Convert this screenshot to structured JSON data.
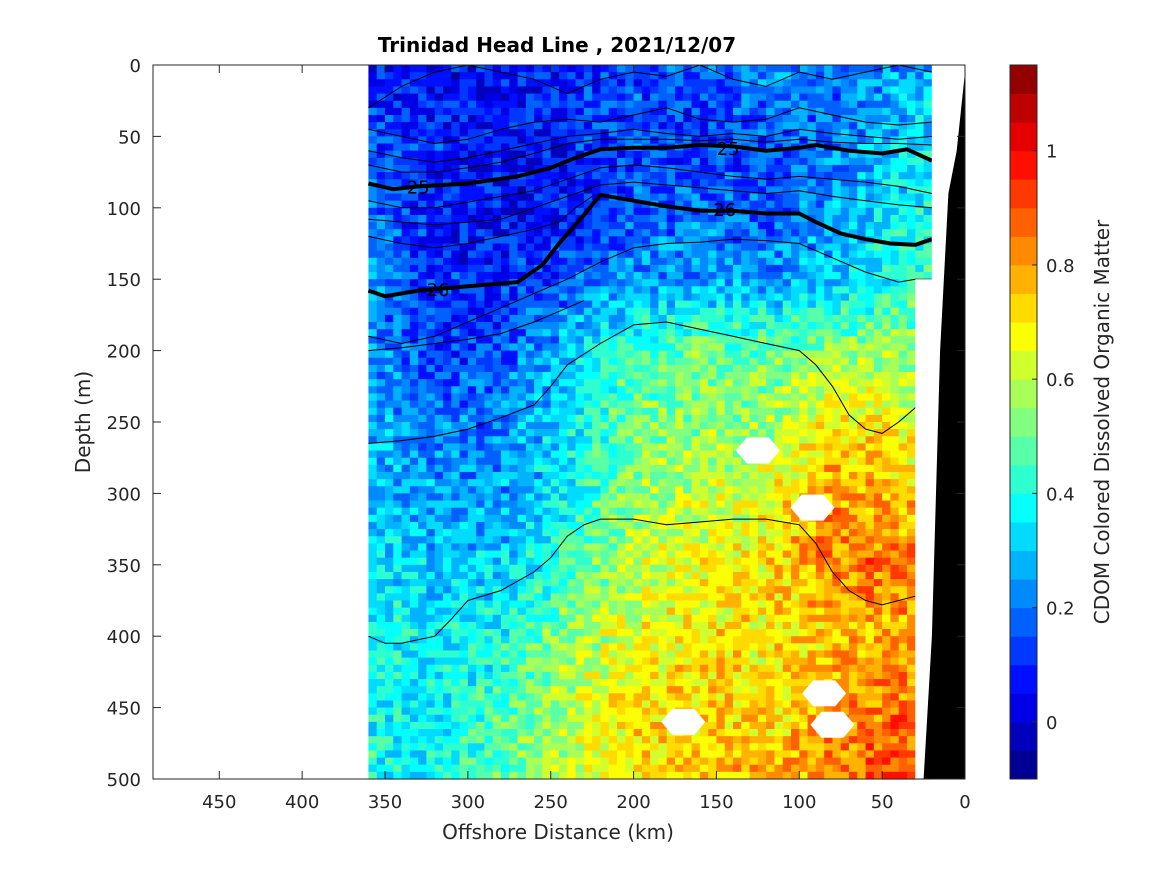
{
  "chart_data": {
    "type": "heatmap",
    "title": "Trinidad Head Line , 2021/12/07",
    "xlabel": "Offshore Distance (km)",
    "ylabel": "Depth (m)",
    "colorbar_label": "CDOM Colored Dissolved Organic Matter",
    "xlim": [
      490,
      0
    ],
    "ylim": [
      0,
      500
    ],
    "y_reversed": true,
    "x_reversed": true,
    "x_ticks": [
      450,
      400,
      350,
      300,
      250,
      200,
      150,
      100,
      50,
      0
    ],
    "y_ticks": [
      0,
      50,
      100,
      150,
      200,
      250,
      300,
      350,
      400,
      450,
      500
    ],
    "clim": [
      -0.1,
      1.15
    ],
    "colorbar_ticks": [
      0,
      0.2,
      0.4,
      0.6,
      0.8,
      1
    ],
    "colormap": "jet",
    "data_extent_x": [
      360,
      20
    ],
    "field": {
      "x_km": [
        360,
        320,
        280,
        240,
        200,
        160,
        120,
        80,
        40,
        20
      ],
      "depth_m": [
        0,
        50,
        100,
        150,
        200,
        250,
        300,
        350,
        400,
        450,
        500
      ],
      "cdom": [
        [
          0.1,
          0.05,
          0.05,
          0.1,
          0.15,
          0.15,
          0.25,
          0.2,
          0.25,
          0.25
        ],
        [
          0.15,
          0.1,
          0.05,
          0.1,
          0.15,
          0.1,
          0.15,
          0.2,
          0.3,
          0.35
        ],
        [
          0.2,
          0.1,
          0.05,
          0.05,
          0.15,
          0.2,
          0.15,
          0.25,
          0.35,
          0.4
        ],
        [
          0.25,
          0.1,
          0.1,
          0.15,
          0.25,
          0.25,
          0.25,
          0.3,
          0.4,
          0.45
        ],
        [
          0.25,
          0.1,
          0.15,
          0.3,
          0.45,
          0.5,
          0.5,
          0.55,
          0.55,
          0.55
        ],
        [
          0.3,
          0.2,
          0.2,
          0.35,
          0.5,
          0.55,
          0.55,
          0.7,
          0.65,
          0.6
        ],
        [
          0.3,
          0.25,
          0.25,
          0.35,
          0.55,
          0.6,
          0.65,
          0.8,
          0.75,
          0.75
        ],
        [
          0.35,
          0.3,
          0.3,
          0.45,
          0.6,
          0.65,
          0.7,
          0.85,
          0.85,
          0.8
        ],
        [
          0.4,
          0.35,
          0.4,
          0.55,
          0.65,
          0.7,
          0.7,
          0.75,
          0.8,
          0.75
        ],
        [
          0.4,
          0.35,
          0.45,
          0.6,
          0.7,
          0.75,
          0.7,
          0.8,
          0.85,
          0.85
        ],
        [
          0.4,
          0.35,
          0.5,
          0.6,
          0.7,
          0.75,
          0.75,
          0.85,
          0.9,
          0.85
        ]
      ]
    },
    "isopycnal_labels": [
      {
        "value": "25",
        "x_km": 330,
        "depth_m": 85
      },
      {
        "value": "25",
        "x_km": 143,
        "depth_m": 58
      },
      {
        "value": "26",
        "x_km": 145,
        "depth_m": 101
      },
      {
        "value": "26",
        "x_km": 318,
        "depth_m": 157
      }
    ],
    "isopycnals_bold": [
      {
        "value": 25,
        "points": [
          [
            360,
            83
          ],
          [
            345,
            87
          ],
          [
            330,
            85
          ],
          [
            300,
            83
          ],
          [
            270,
            78
          ],
          [
            250,
            72
          ],
          [
            235,
            65
          ],
          [
            220,
            59
          ],
          [
            200,
            58
          ],
          [
            180,
            58
          ],
          [
            160,
            56
          ],
          [
            140,
            57
          ],
          [
            120,
            60
          ],
          [
            100,
            58
          ],
          [
            90,
            56
          ],
          [
            70,
            60
          ],
          [
            50,
            62
          ],
          [
            35,
            59
          ],
          [
            20,
            67
          ]
        ]
      },
      {
        "value": 26,
        "points": [
          [
            360,
            158
          ],
          [
            350,
            162
          ],
          [
            330,
            158
          ],
          [
            300,
            155
          ],
          [
            270,
            152
          ],
          [
            255,
            140
          ],
          [
            245,
            125
          ],
          [
            230,
            105
          ],
          [
            220,
            91
          ],
          [
            200,
            95
          ],
          [
            180,
            99
          ],
          [
            160,
            102
          ],
          [
            140,
            102
          ],
          [
            120,
            104
          ],
          [
            100,
            104
          ],
          [
            90,
            110
          ],
          [
            75,
            118
          ],
          [
            60,
            122
          ],
          [
            45,
            125
          ],
          [
            30,
            126
          ],
          [
            20,
            122
          ]
        ]
      }
    ],
    "isopycnals_thin": [
      {
        "points": [
          [
            360,
            30
          ],
          [
            340,
            15
          ],
          [
            320,
            5
          ],
          [
            300,
            0
          ],
          [
            260,
            10
          ],
          [
            240,
            20
          ],
          [
            220,
            10
          ],
          [
            200,
            5
          ],
          [
            180,
            8
          ],
          [
            160,
            0
          ],
          [
            140,
            10
          ],
          [
            120,
            15
          ],
          [
            100,
            5
          ],
          [
            80,
            10
          ],
          [
            60,
            5
          ],
          [
            40,
            0
          ],
          [
            20,
            5
          ]
        ]
      },
      {
        "points": [
          [
            360,
            45
          ],
          [
            340,
            50
          ],
          [
            320,
            55
          ],
          [
            300,
            52
          ],
          [
            280,
            45
          ],
          [
            260,
            40
          ],
          [
            240,
            38
          ],
          [
            220,
            40
          ],
          [
            200,
            35
          ],
          [
            180,
            30
          ],
          [
            160,
            38
          ],
          [
            140,
            40
          ],
          [
            120,
            38
          ],
          [
            100,
            30
          ],
          [
            80,
            35
          ],
          [
            60,
            40
          ],
          [
            40,
            42
          ],
          [
            20,
            40
          ]
        ]
      },
      {
        "points": [
          [
            360,
            60
          ],
          [
            340,
            65
          ],
          [
            320,
            68
          ],
          [
            300,
            65
          ],
          [
            280,
            60
          ],
          [
            260,
            55
          ],
          [
            240,
            50
          ],
          [
            220,
            48
          ],
          [
            200,
            45
          ],
          [
            180,
            48
          ],
          [
            160,
            50
          ],
          [
            140,
            48
          ],
          [
            120,
            50
          ],
          [
            100,
            45
          ],
          [
            80,
            48
          ],
          [
            60,
            50
          ],
          [
            40,
            52
          ],
          [
            20,
            50
          ]
        ]
      },
      {
        "points": [
          [
            360,
            70
          ],
          [
            340,
            75
          ],
          [
            320,
            75
          ],
          [
            300,
            72
          ],
          [
            280,
            68
          ],
          [
            260,
            62
          ],
          [
            240,
            55
          ],
          [
            220,
            52
          ],
          [
            200,
            52
          ],
          [
            180,
            52
          ],
          [
            160,
            53
          ],
          [
            140,
            52
          ],
          [
            120,
            54
          ],
          [
            100,
            52
          ],
          [
            80,
            54
          ],
          [
            60,
            55
          ],
          [
            40,
            55
          ],
          [
            20,
            56
          ]
        ]
      },
      {
        "points": [
          [
            360,
            95
          ],
          [
            340,
            100
          ],
          [
            320,
            100
          ],
          [
            300,
            96
          ],
          [
            280,
            92
          ],
          [
            260,
            88
          ],
          [
            240,
            80
          ],
          [
            220,
            72
          ],
          [
            200,
            70
          ],
          [
            180,
            72
          ],
          [
            160,
            75
          ],
          [
            140,
            78
          ],
          [
            120,
            80
          ],
          [
            100,
            78
          ],
          [
            80,
            80
          ],
          [
            60,
            82
          ],
          [
            40,
            85
          ],
          [
            20,
            90
          ]
        ]
      },
      {
        "points": [
          [
            360,
            108
          ],
          [
            340,
            110
          ],
          [
            320,
            112
          ],
          [
            300,
            110
          ],
          [
            280,
            108
          ],
          [
            260,
            100
          ],
          [
            240,
            92
          ],
          [
            220,
            84
          ],
          [
            200,
            82
          ],
          [
            180,
            84
          ],
          [
            160,
            86
          ],
          [
            140,
            88
          ],
          [
            120,
            90
          ],
          [
            100,
            88
          ],
          [
            80,
            92
          ],
          [
            60,
            95
          ],
          [
            40,
            98
          ],
          [
            20,
            100
          ]
        ]
      },
      {
        "points": [
          [
            360,
            120
          ],
          [
            340,
            125
          ],
          [
            320,
            128
          ],
          [
            300,
            125
          ],
          [
            280,
            120
          ],
          [
            260,
            115
          ],
          [
            245,
            110
          ],
          [
            235,
            100
          ],
          [
            225,
            92
          ]
        ]
      },
      {
        "points": [
          [
            360,
            190
          ],
          [
            340,
            195
          ],
          [
            320,
            190
          ],
          [
            300,
            180
          ],
          [
            280,
            170
          ],
          [
            260,
            160
          ],
          [
            240,
            150
          ],
          [
            220,
            138
          ],
          [
            200,
            128
          ],
          [
            180,
            125
          ],
          [
            160,
            124
          ],
          [
            140,
            122
          ],
          [
            120,
            123
          ],
          [
            100,
            125
          ],
          [
            80,
            135
          ],
          [
            60,
            145
          ],
          [
            40,
            152
          ],
          [
            30,
            150
          ],
          [
            20,
            150
          ]
        ]
      },
      {
        "points": [
          [
            360,
            200
          ],
          [
            340,
            198
          ],
          [
            320,
            195
          ],
          [
            300,
            192
          ],
          [
            280,
            188
          ],
          [
            260,
            180
          ],
          [
            250,
            175
          ],
          [
            240,
            170
          ],
          [
            230,
            165
          ]
        ]
      },
      {
        "points": [
          [
            360,
            265
          ],
          [
            340,
            263
          ],
          [
            320,
            260
          ],
          [
            300,
            255
          ],
          [
            280,
            247
          ],
          [
            260,
            238
          ],
          [
            250,
            225
          ],
          [
            240,
            210
          ],
          [
            220,
            195
          ],
          [
            200,
            182
          ],
          [
            180,
            180
          ],
          [
            160,
            185
          ],
          [
            140,
            190
          ],
          [
            120,
            195
          ],
          [
            100,
            200
          ],
          [
            90,
            210
          ],
          [
            80,
            225
          ],
          [
            70,
            245
          ],
          [
            60,
            255
          ],
          [
            50,
            258
          ],
          [
            40,
            250
          ],
          [
            30,
            240
          ],
          [
            20,
            238
          ]
        ]
      },
      {
        "points": [
          [
            360,
            400
          ],
          [
            350,
            405
          ],
          [
            340,
            405
          ],
          [
            320,
            400
          ],
          [
            310,
            388
          ],
          [
            300,
            375
          ],
          [
            280,
            368
          ],
          [
            260,
            355
          ],
          [
            250,
            345
          ],
          [
            240,
            330
          ],
          [
            230,
            322
          ],
          [
            220,
            318
          ],
          [
            200,
            318
          ],
          [
            180,
            322
          ],
          [
            160,
            320
          ],
          [
            140,
            318
          ],
          [
            120,
            318
          ],
          [
            100,
            322
          ],
          [
            90,
            335
          ],
          [
            80,
            355
          ],
          [
            70,
            368
          ],
          [
            60,
            375
          ],
          [
            50,
            378
          ],
          [
            40,
            375
          ],
          [
            30,
            372
          ],
          [
            20,
            370
          ]
        ]
      }
    ],
    "missing_patches": [
      {
        "x_km": 125,
        "depth_m": 270
      },
      {
        "x_km": 92,
        "depth_m": 310
      },
      {
        "x_km": 85,
        "depth_m": 440
      },
      {
        "x_km": 170,
        "depth_m": 460
      },
      {
        "x_km": 80,
        "depth_m": 462
      }
    ],
    "bathymetry": [
      [
        0,
        5
      ],
      [
        5,
        60
      ],
      [
        10,
        90
      ],
      [
        15,
        200
      ],
      [
        20,
        400
      ],
      [
        25,
        500
      ]
    ]
  }
}
